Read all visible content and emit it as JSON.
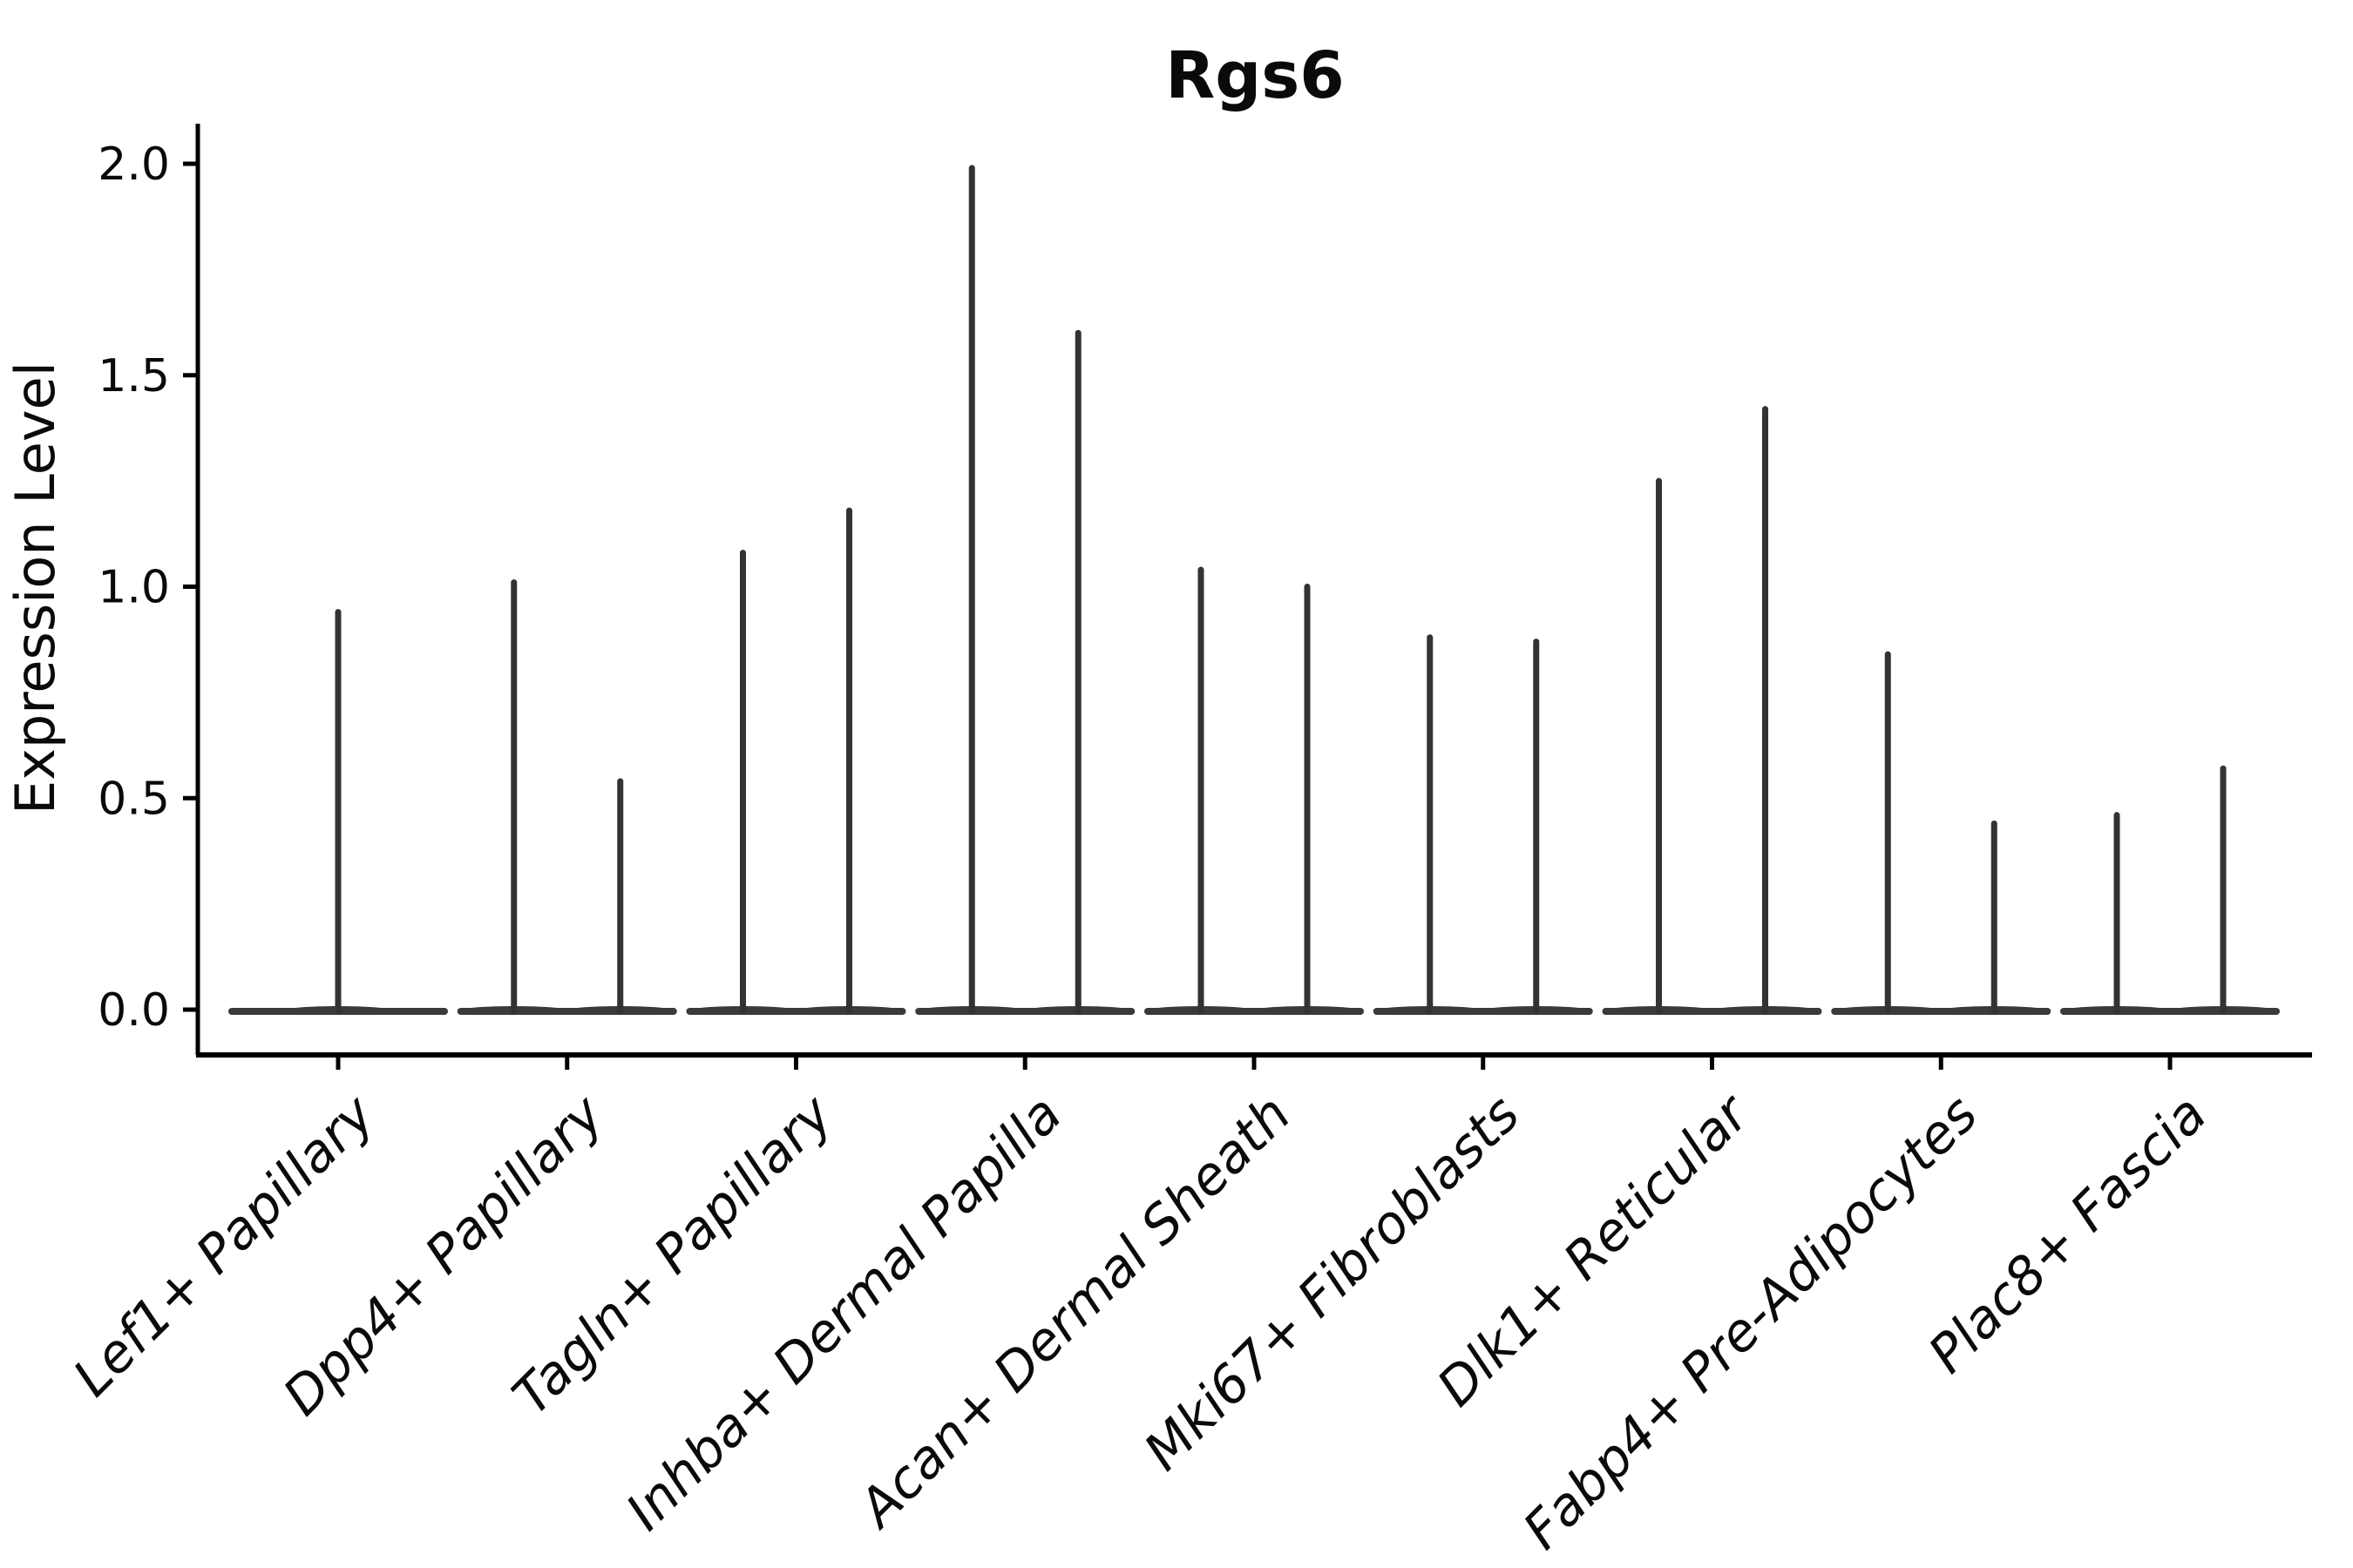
{
  "figure": {
    "background_color": "#ffffff",
    "text_color": "#0a0a0a"
  },
  "chart_data": {
    "type": "violin",
    "title": "Rgs6",
    "xlabel": "",
    "ylabel": "Expression Level",
    "legend": "none",
    "grid": false,
    "ylim": [
      -0.105,
      2.09
    ],
    "ytick_labels": [
      "0.0",
      "0.5",
      "1.0",
      "1.5",
      "2.0"
    ],
    "ytick_values": [
      0.0,
      0.5,
      1.0,
      1.5,
      2.0
    ],
    "violin_style": "thin spike from dense mass at 0 up to max expression; flat wide base at 0",
    "violin_color": "#333333",
    "baseline_color": "#3a3a3a",
    "axis_color": "#000000",
    "categories": [
      "Lef1+ Papillary",
      "Dpp4+ Papillary",
      "Tagln+ Papillary",
      "Inhba+ Dermal Papilla",
      "Acan+ Dermal Sheath",
      "Mki67+ Fibroblasts",
      "Dlk1+ Reticular",
      "Fabp4+ Pre-Adipocytes",
      "Plac8+ Fascia"
    ],
    "series": [
      {
        "category": "Lef1+ Papillary",
        "violin_maxima": [
          0.94
        ]
      },
      {
        "category": "Dpp4+ Papillary",
        "violin_maxima": [
          1.01,
          0.54
        ]
      },
      {
        "category": "Tagln+ Papillary",
        "violin_maxima": [
          1.08,
          1.18
        ]
      },
      {
        "category": "Inhba+ Dermal Papilla",
        "violin_maxima": [
          1.99,
          1.6
        ]
      },
      {
        "category": "Acan+ Dermal Sheath",
        "violin_maxima": [
          1.04,
          1.0
        ]
      },
      {
        "category": "Mki67+ Fibroblasts",
        "violin_maxima": [
          0.88,
          0.87
        ]
      },
      {
        "category": "Dlk1+ Reticular",
        "violin_maxima": [
          1.25,
          1.42
        ]
      },
      {
        "category": "Fabp4+ Pre-Adipocytes",
        "violin_maxima": [
          0.84,
          0.44
        ]
      },
      {
        "category": "Plac8+ Fascia",
        "violin_maxima": [
          0.46,
          0.57
        ]
      }
    ],
    "baseline_value": 0.0
  }
}
